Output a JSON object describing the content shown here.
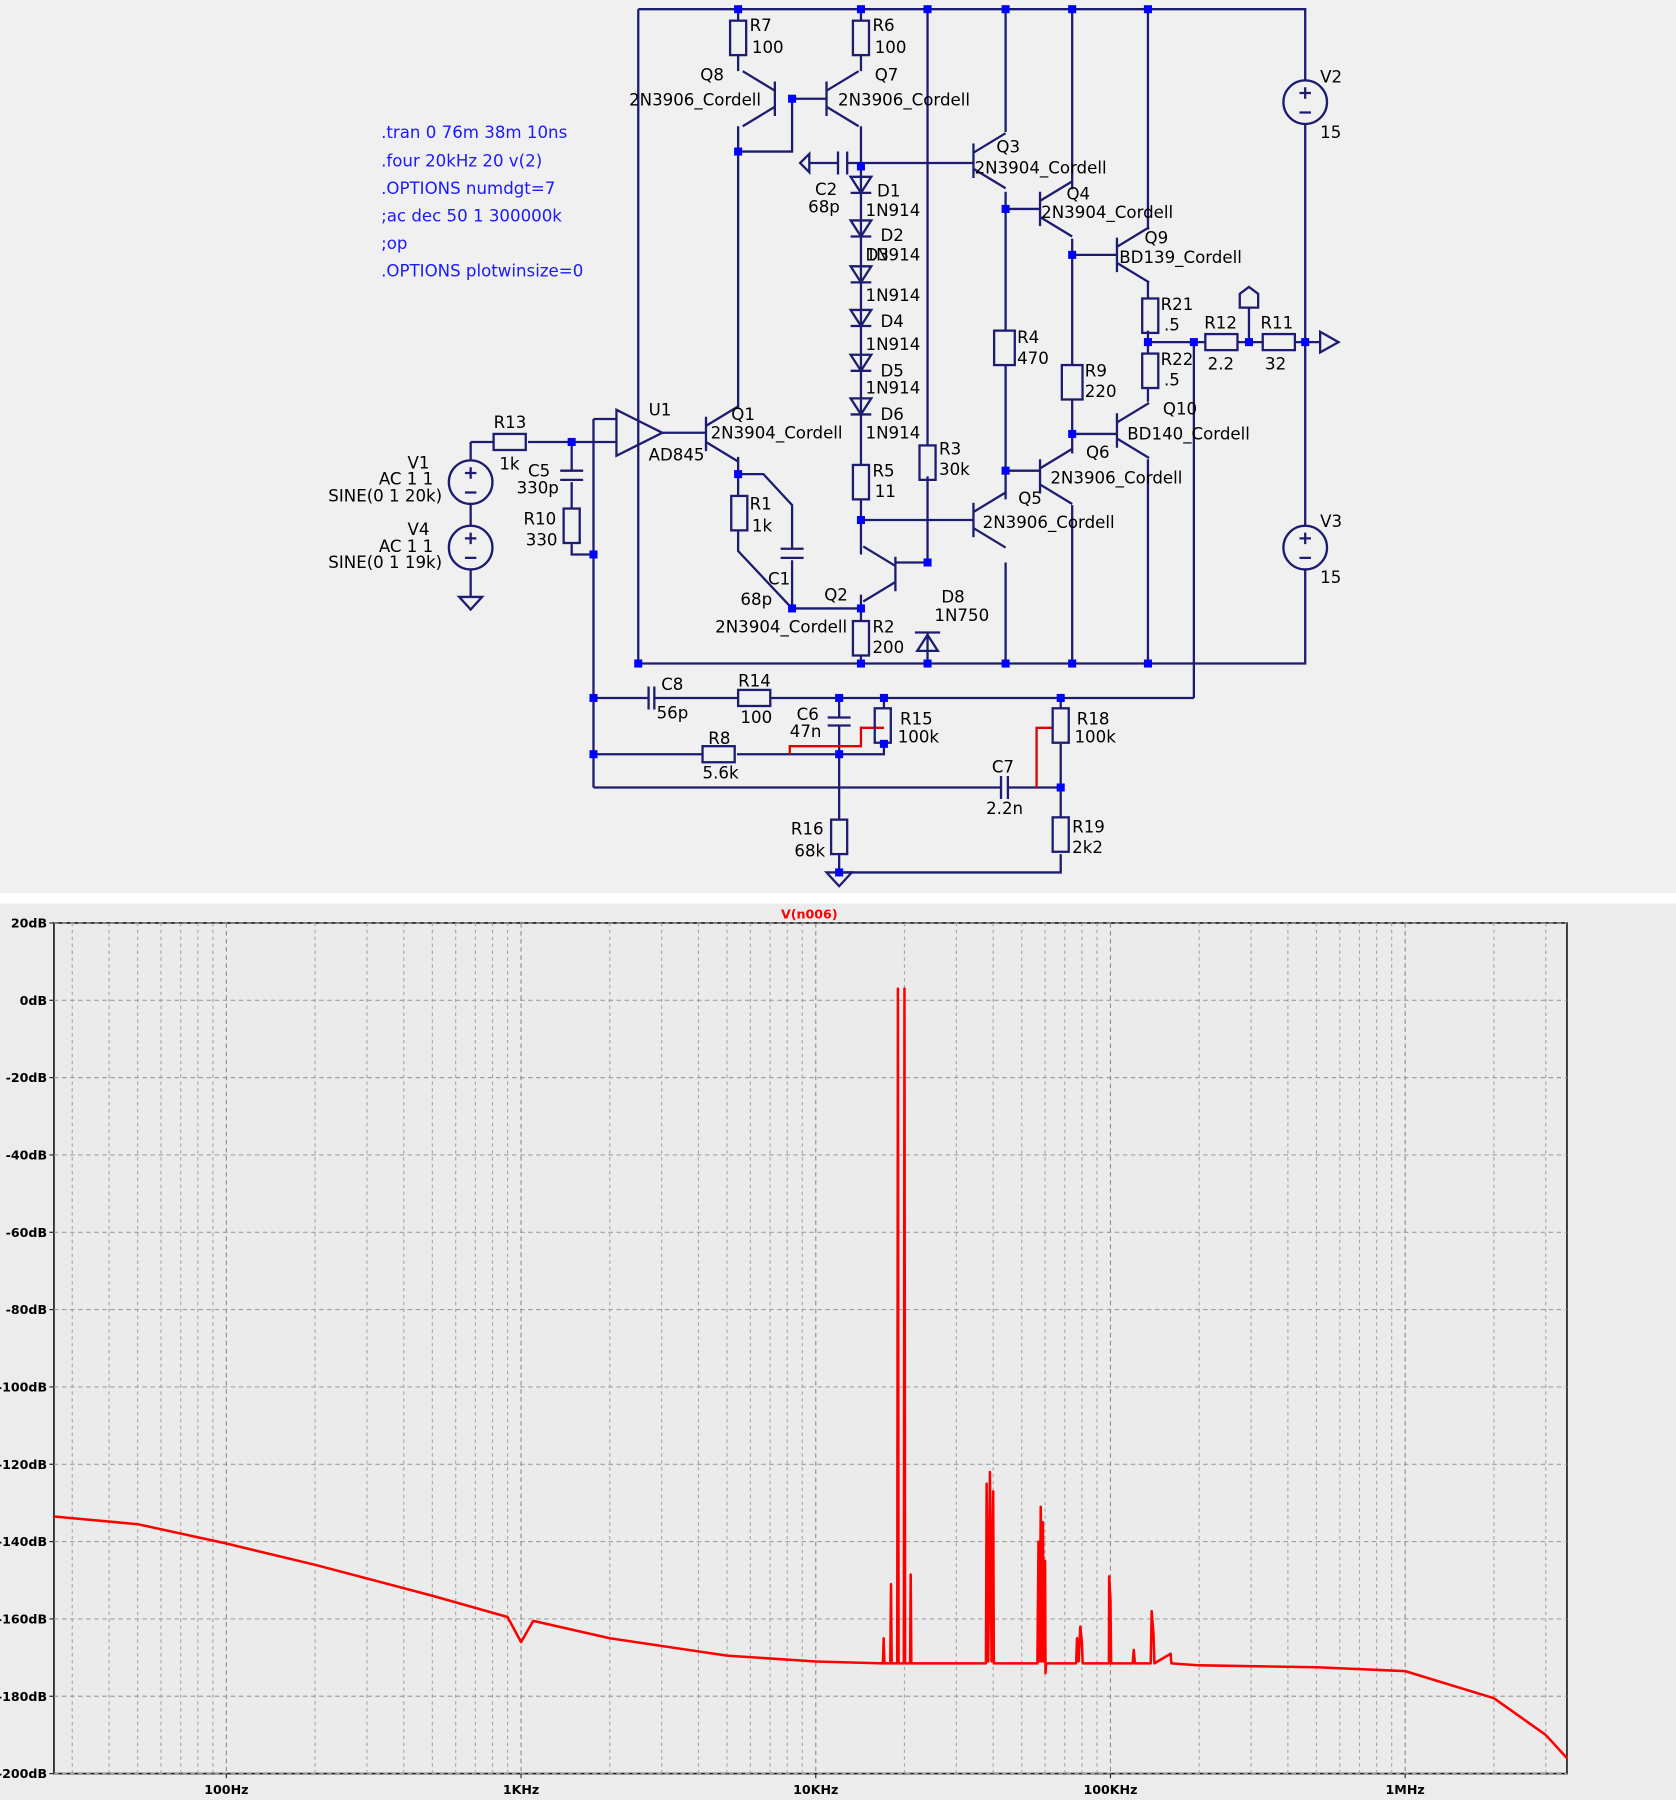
{
  "schematic": {
    "directives": [
      ".tran 0 76m 38m 10ns",
      ".four 20kHz 20 v(2)",
      ".OPTIONS numdgt=7",
      ";ac dec 50 1 300000k",
      ";op",
      ".OPTIONS plotwinsize=0"
    ],
    "labels": [
      "R7",
      "100",
      "R6",
      "100",
      "Q8",
      "2N3906_Cordell",
      "Q7",
      "2N3906_Cordell",
      "Q3",
      "2N3904_Cordell",
      "C2",
      "68p",
      "D1",
      "1N914",
      "D2",
      "1N914",
      "D3",
      "1N914",
      "D4",
      "1N914",
      "D5",
      "1N914",
      "D6",
      "1N914",
      "Q4",
      "2N3904_Cordell",
      "Q9",
      "BD139_Cordell",
      "R21",
      ".5",
      "R12",
      "2.2",
      "R11",
      "32",
      "R4",
      "470",
      "R22",
      ".5",
      "R9",
      "220",
      "Q10",
      "BD140_Cordell",
      "V2",
      "15",
      "V3",
      "15",
      "U1",
      "Q1",
      "2N3904_Cordell",
      "AD845",
      "R3",
      "30k",
      "R5",
      "11",
      "Q6",
      "2N3906_Cordell",
      "Q5",
      "2N3906_Cordell",
      "R13",
      "1k",
      "C5",
      "330p",
      "R10",
      "330",
      "V1",
      "AC 1 1",
      "SINE(0 1 20k)",
      "V4",
      "AC 1 1",
      "SINE(0 1 19k)",
      "R1",
      "1k",
      "C1",
      "68p",
      "Q2",
      "2N3904_Cordell",
      "R2",
      "200",
      "D8",
      "1N750",
      "C8",
      "56p",
      "R14",
      "100",
      "C6",
      "47n",
      "R15",
      "100k",
      "R18",
      "100k",
      "R8",
      "5.6k",
      "C7",
      "2.2n",
      "R16",
      "68k",
      "R19",
      "2k2"
    ]
  },
  "chart_data": {
    "type": "line",
    "log_x": true,
    "grid": true,
    "x": [
      26,
      50,
      100,
      200,
      500,
      900,
      1000,
      1100,
      2000,
      5000,
      10000,
      16900,
      17000,
      17100,
      17900,
      18000,
      18100,
      18900,
      19000,
      19100,
      19900,
      20000,
      20100,
      20900,
      21000,
      21100,
      37800,
      38000,
      38500,
      39000,
      39500,
      40000,
      40200,
      56500,
      57000,
      57500,
      58000,
      58500,
      59000,
      59500,
      60000,
      60200,
      60500,
      76500,
      77000,
      78000,
      79000,
      80000,
      80500,
      98800,
      99000,
      100000,
      100500,
      119000,
      120000,
      121000,
      137000,
      138000,
      140000,
      141000,
      160000,
      161000,
      200000,
      500000,
      1000000,
      2000000,
      3000000,
      3540000
    ],
    "series": [
      {
        "name": "V(n006)",
        "color": "#ff0000",
        "values": [
          -133.5,
          -135.5,
          -140.5,
          -146,
          -154,
          -159.5,
          -166,
          -160.5,
          -165,
          -169.5,
          -171,
          -171.5,
          -165,
          -171.5,
          -171.5,
          -151,
          -171.5,
          -171.5,
          3,
          -171.5,
          -171.5,
          3,
          -171.5,
          -171.5,
          -148.5,
          -171.5,
          -171.5,
          -125,
          -171,
          -122,
          -171,
          -127,
          -171.5,
          -171.5,
          -140,
          -171,
          -131,
          -171,
          -135,
          -171,
          -145,
          -174,
          -171.5,
          -171.5,
          -165,
          -171,
          -162,
          -166,
          -171.5,
          -171.5,
          -149,
          -155,
          -171.5,
          -171.5,
          -168,
          -171.5,
          -171.5,
          -158,
          -164,
          -171.5,
          -169,
          -171.5,
          -172,
          -172.5,
          -173.5,
          -180.5,
          -190,
          -196
        ]
      }
    ],
    "xlim": [
      26,
      3540000
    ],
    "xticks": [
      {
        "value": 100,
        "label": "100Hz"
      },
      {
        "value": 1000,
        "label": "1KHz"
      },
      {
        "value": 10000,
        "label": "10KHz"
      },
      {
        "value": 100000,
        "label": "100KHz"
      },
      {
        "value": 1000000,
        "label": "1MHz"
      }
    ],
    "ylim": [
      -200,
      20
    ],
    "yticks": [
      {
        "value": 20,
        "label": "20dB"
      },
      {
        "value": 0,
        "label": "0dB"
      },
      {
        "value": -20,
        "label": "-20dB"
      },
      {
        "value": -40,
        "label": "-40dB"
      },
      {
        "value": -60,
        "label": "-60dB"
      },
      {
        "value": -80,
        "label": "-80dB"
      },
      {
        "value": -100,
        "label": "-100dB"
      },
      {
        "value": -120,
        "label": "-120dB"
      },
      {
        "value": -140,
        "label": "-140dB"
      },
      {
        "value": -160,
        "label": "-160dB"
      },
      {
        "value": -180,
        "label": "-180dB"
      },
      {
        "value": -200,
        "label": "-200dB"
      }
    ]
  }
}
